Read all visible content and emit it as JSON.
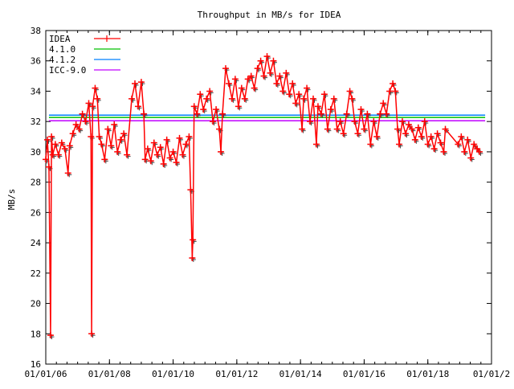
{
  "chart_data": {
    "type": "line",
    "title": "Throughput in MB/s for IDEA",
    "xlabel": "",
    "ylabel": "MB/s",
    "xlim": [
      2006.0,
      2020.0
    ],
    "ylim": [
      16,
      38
    ],
    "x_ticks": [
      {
        "value": 2006,
        "label": "01/01/06"
      },
      {
        "value": 2008,
        "label": "01/01/08"
      },
      {
        "value": 2010,
        "label": "01/01/10"
      },
      {
        "value": 2012,
        "label": "01/01/12"
      },
      {
        "value": 2014,
        "label": "01/01/14"
      },
      {
        "value": 2016,
        "label": "01/01/16"
      },
      {
        "value": 2018,
        "label": "01/01/18"
      },
      {
        "value": 2020,
        "label": "01/01/2"
      }
    ],
    "y_ticks": [
      16,
      18,
      20,
      22,
      24,
      26,
      28,
      30,
      32,
      34,
      36,
      38
    ],
    "grid": false,
    "legend_position": "top-left",
    "series": [
      {
        "name": "IDEA",
        "color": "#ff0000",
        "style": "linespoints",
        "x": [
          2006.0,
          2006.05,
          2006.1,
          2006.15,
          2006.18,
          2006.22,
          2006.3,
          2006.4,
          2006.5,
          2006.6,
          2006.7,
          2006.75,
          2006.85,
          2006.95,
          2007.05,
          2007.15,
          2007.25,
          2007.35,
          2007.42,
          2007.44,
          2007.47,
          2007.55,
          2007.62,
          2007.68,
          2007.75,
          2007.85,
          2007.95,
          2008.05,
          2008.15,
          2008.25,
          2008.35,
          2008.45,
          2008.55,
          2008.7,
          2008.8,
          2008.9,
          2009.0,
          2009.08,
          2009.12,
          2009.2,
          2009.3,
          2009.4,
          2009.5,
          2009.6,
          2009.7,
          2009.8,
          2009.9,
          2010.0,
          2010.1,
          2010.2,
          2010.3,
          2010.4,
          2010.5,
          2010.55,
          2010.6,
          2010.62,
          2010.66,
          2010.75,
          2010.85,
          2010.95,
          2011.05,
          2011.15,
          2011.25,
          2011.35,
          2011.45,
          2011.5,
          2011.55,
          2011.65,
          2011.75,
          2011.85,
          2011.95,
          2012.05,
          2012.15,
          2012.25,
          2012.35,
          2012.45,
          2012.55,
          2012.65,
          2012.75,
          2012.85,
          2012.95,
          2013.05,
          2013.15,
          2013.25,
          2013.35,
          2013.45,
          2013.55,
          2013.65,
          2013.75,
          2013.85,
          2013.95,
          2014.05,
          2014.1,
          2014.2,
          2014.3,
          2014.4,
          2014.5,
          2014.55,
          2014.65,
          2014.75,
          2014.85,
          2014.95,
          2015.05,
          2015.15,
          2015.25,
          2015.35,
          2015.45,
          2015.55,
          2015.62,
          2015.7,
          2015.8,
          2015.9,
          2016.0,
          2016.1,
          2016.2,
          2016.3,
          2016.4,
          2016.5,
          2016.6,
          2016.7,
          2016.8,
          2016.9,
          2016.98,
          2017.05,
          2017.1,
          2017.2,
          2017.3,
          2017.4,
          2017.5,
          2017.6,
          2017.7,
          2017.8,
          2017.9,
          2018.0,
          2018.1,
          2018.2,
          2018.3,
          2018.4,
          2018.5,
          2018.55,
          2018.95,
          2019.05,
          2019.15,
          2019.25,
          2019.35,
          2019.45,
          2019.55,
          2019.62
        ],
        "y": [
          29.5,
          30.8,
          29.0,
          17.9,
          31.0,
          29.8,
          30.5,
          29.8,
          30.6,
          30.2,
          28.6,
          30.4,
          31.2,
          31.8,
          31.5,
          32.5,
          32.0,
          33.2,
          31.0,
          18.0,
          33.0,
          34.2,
          33.5,
          31.0,
          30.5,
          29.5,
          31.5,
          30.4,
          31.8,
          30.0,
          30.8,
          31.2,
          29.8,
          33.5,
          34.5,
          33.0,
          34.6,
          32.5,
          29.5,
          30.2,
          29.4,
          30.6,
          29.8,
          30.3,
          29.2,
          30.8,
          29.6,
          30.0,
          29.3,
          30.9,
          29.8,
          30.5,
          31.0,
          27.5,
          23.0,
          24.2,
          33.0,
          32.5,
          33.8,
          32.8,
          33.5,
          34.0,
          32.0,
          32.8,
          31.5,
          30.0,
          32.5,
          35.5,
          34.5,
          33.5,
          34.8,
          33.0,
          34.2,
          33.5,
          34.8,
          35.0,
          34.2,
          35.5,
          36.0,
          35.0,
          36.3,
          35.2,
          36.0,
          34.5,
          35.0,
          34.0,
          35.2,
          33.8,
          34.5,
          33.2,
          33.8,
          31.5,
          33.5,
          34.2,
          32.0,
          33.5,
          30.5,
          33.0,
          32.5,
          33.8,
          31.5,
          32.8,
          33.5,
          31.5,
          32.0,
          31.2,
          32.5,
          34.0,
          33.5,
          32.0,
          31.2,
          32.8,
          31.5,
          32.5,
          30.5,
          32.0,
          31.0,
          32.5,
          33.2,
          32.5,
          34.0,
          34.5,
          34.0,
          31.5,
          30.5,
          32.0,
          31.2,
          31.8,
          31.5,
          30.8,
          31.6,
          31.0,
          32.0,
          30.5,
          31.0,
          30.2,
          31.2,
          30.6,
          30.0,
          31.5,
          30.5,
          31.0,
          30.0,
          30.8,
          29.6,
          30.5,
          30.2,
          30.0
        ]
      },
      {
        "name": "4.1.0",
        "color": "#00c000",
        "style": "hline",
        "value": 32.27,
        "x_range": [
          2006.1,
          2019.8
        ]
      },
      {
        "name": "4.1.2",
        "color": "#0080ff",
        "style": "hline",
        "value": 32.42,
        "x_range": [
          2006.1,
          2019.8
        ]
      },
      {
        "name": "ICC-9.0",
        "color": "#c000ff",
        "style": "hline",
        "value": 32.05,
        "x_range": [
          2006.1,
          2019.8
        ]
      }
    ]
  }
}
